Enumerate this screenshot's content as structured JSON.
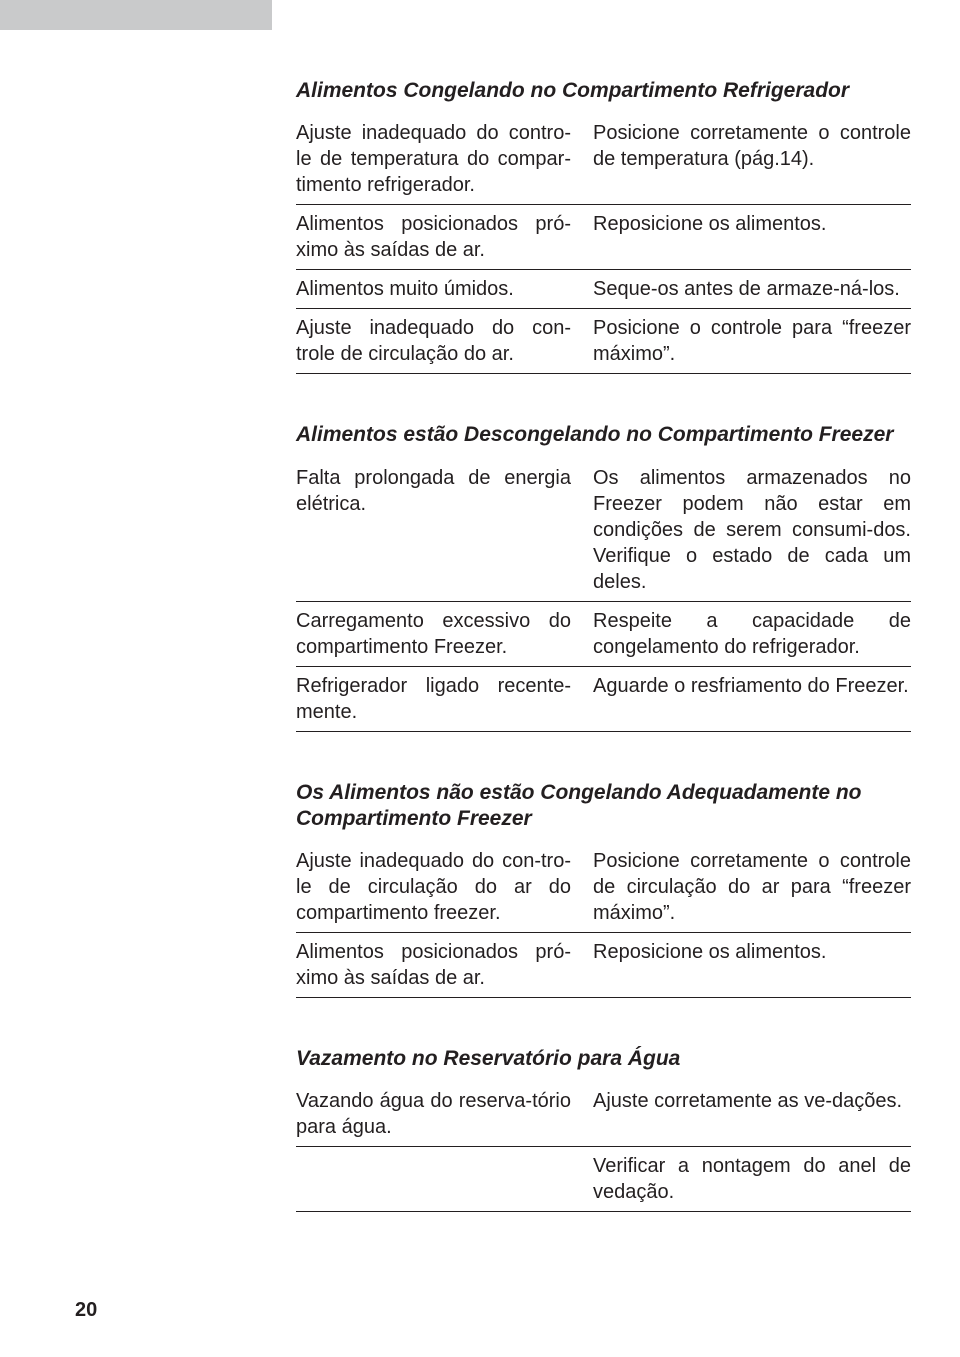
{
  "page_number": "20",
  "colors": {
    "text": "#231f20",
    "sidebar": "#c9cacb",
    "rule": "#231f20",
    "background": "#ffffff"
  },
  "typography": {
    "body_fontsize": 20,
    "heading_fontsize": 21,
    "heading_weight": "bold",
    "heading_style": "italic",
    "font_family": "Arial"
  },
  "sections": [
    {
      "heading": "Alimentos Congelando no Compartimento Refrigerador",
      "rows": [
        {
          "cause": "Ajuste inadequado do contro-le de temperatura do compar-timento refrigerador.",
          "fix": "Posicione corretamente o controle de temperatura (pág.14)."
        },
        {
          "cause": "Alimentos posicionados pró-ximo às saídas de ar.",
          "fix": "Reposicione os alimentos."
        },
        {
          "cause": "Alimentos muito úmidos.",
          "fix": "Seque-os antes de armaze-ná-los."
        },
        {
          "cause": "Ajuste inadequado do con-trole de circulação do ar.",
          "fix": "Posicione o controle para “freezer máximo”."
        }
      ]
    },
    {
      "heading": "Alimentos estão Descongelando no Compartimento Freezer",
      "rows": [
        {
          "cause": "Falta prolongada de energia elétrica.",
          "fix": "Os alimentos armazenados no Freezer podem não estar em condições de serem consumi-dos. Verifique o estado de cada um deles."
        },
        {
          "cause": "Carregamento excessivo do compartimento Freezer.",
          "fix": "Respeite a capacidade de congelamento do refrigerador."
        },
        {
          "cause": "Refrigerador ligado recente-mente.",
          "fix": "Aguarde o resfriamento do Freezer."
        }
      ]
    },
    {
      "heading": "Os Alimentos não estão Congelando Adequadamente no Compartimento Freezer",
      "rows": [
        {
          "cause": "Ajuste inadequado do con-tro-le de circulação do ar do compartimento freezer.",
          "fix": "Posicione corretamente o controle de circulação do ar para “freezer máximo”."
        },
        {
          "cause": "Alimentos posicionados pró-ximo às saídas de ar.",
          "fix": "Reposicione os alimentos."
        }
      ]
    },
    {
      "heading": "Vazamento no Reservatório para Água",
      "rows": [
        {
          "cause": "Vazando água do reserva-tório para água.",
          "fix": "Ajuste corretamente as ve-dações."
        },
        {
          "cause": "",
          "fix": "Verificar a nontagem do anel de vedação."
        }
      ]
    }
  ]
}
